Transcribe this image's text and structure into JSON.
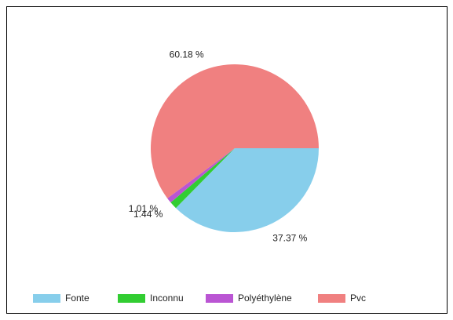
{
  "chart_data": {
    "type": "pie",
    "categories": [
      "Fonte",
      "Inconnu",
      "Polyéthylène",
      "Pvc"
    ],
    "values": [
      37.37,
      1.44,
      1.01,
      60.18
    ],
    "value_labels": [
      "37.37 %",
      "1.44 %",
      "1.01 %",
      "60.18 %"
    ],
    "colors": [
      "#87ceeb",
      "#32cd32",
      "#ba55d3",
      "#f08080"
    ],
    "legend": "bottom"
  }
}
